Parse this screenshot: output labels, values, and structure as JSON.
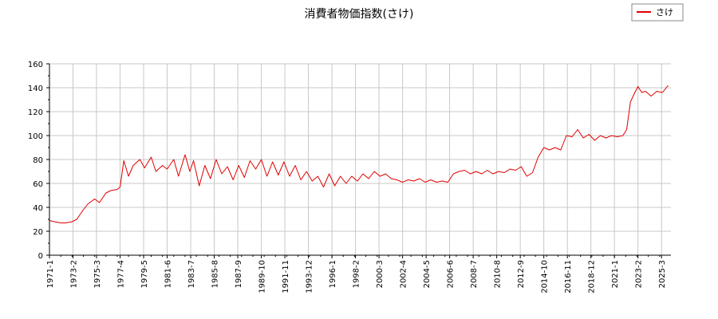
{
  "chart_data": {
    "type": "line",
    "title": "消費者物価指数(さけ)",
    "xlabel": "",
    "ylabel": "",
    "ylim": [
      0,
      160
    ],
    "yticks": [
      0,
      20,
      40,
      60,
      80,
      100,
      120,
      140,
      160
    ],
    "grid": true,
    "legend_position": "top-right",
    "colors": {
      "series": "#e00000",
      "grid": "#c8c8c8",
      "axis": "#000000",
      "background": "#ffffff"
    },
    "x_tick_labels": [
      "1971-1",
      "1973-2",
      "1975-3",
      "1977-4",
      "1979-5",
      "1981-6",
      "1983-7",
      "1985-8",
      "1987-9",
      "1989-10",
      "1991-11",
      "1993-12",
      "1996-1",
      "1998-2",
      "2000-3",
      "2002-4",
      "2004-5",
      "2006-6",
      "2008-7",
      "2010-8",
      "2012-9",
      "2014-10",
      "2016-11",
      "2018-12",
      "2021-1",
      "2023-2",
      "2025-3"
    ],
    "x_range": [
      "1971-01",
      "2026-01"
    ],
    "series": [
      {
        "name": "さけ",
        "x": [
          "1971-01",
          "1971-06",
          "1972-01",
          "1972-06",
          "1973-01",
          "1973-06",
          "1974-01",
          "1974-06",
          "1975-01",
          "1975-06",
          "1976-01",
          "1976-06",
          "1977-01",
          "1977-04",
          "1977-08",
          "1978-01",
          "1978-06",
          "1979-01",
          "1979-06",
          "1980-01",
          "1980-06",
          "1981-01",
          "1981-06",
          "1982-01",
          "1982-06",
          "1983-01",
          "1983-06",
          "1983-10",
          "1984-04",
          "1984-10",
          "1985-04",
          "1985-10",
          "1986-04",
          "1986-10",
          "1987-04",
          "1987-10",
          "1988-04",
          "1988-10",
          "1989-04",
          "1989-10",
          "1990-04",
          "1990-10",
          "1991-04",
          "1991-10",
          "1992-04",
          "1992-10",
          "1993-04",
          "1993-10",
          "1994-04",
          "1994-10",
          "1995-04",
          "1995-10",
          "1996-04",
          "1996-10",
          "1997-04",
          "1997-10",
          "1998-04",
          "1998-10",
          "1999-04",
          "1999-10",
          "2000-04",
          "2000-10",
          "2001-04",
          "2001-10",
          "2002-04",
          "2002-10",
          "2003-04",
          "2003-10",
          "2004-04",
          "2004-10",
          "2005-04",
          "2005-10",
          "2006-04",
          "2006-10",
          "2007-04",
          "2007-10",
          "2008-04",
          "2008-10",
          "2009-04",
          "2009-10",
          "2010-04",
          "2010-10",
          "2011-04",
          "2011-10",
          "2012-04",
          "2012-10",
          "2013-04",
          "2013-10",
          "2014-04",
          "2014-10",
          "2015-04",
          "2015-10",
          "2016-04",
          "2016-10",
          "2017-04",
          "2017-10",
          "2018-04",
          "2018-10",
          "2019-04",
          "2019-10",
          "2020-04",
          "2020-10",
          "2021-04",
          "2021-10",
          "2022-02",
          "2022-06",
          "2022-10",
          "2023-02",
          "2023-06",
          "2023-10",
          "2024-04",
          "2024-10",
          "2025-04",
          "2025-10"
        ],
        "values": [
          29,
          28,
          27,
          27,
          28,
          30,
          38,
          43,
          47,
          44,
          52,
          54,
          55,
          57,
          79,
          66,
          75,
          80,
          73,
          82,
          70,
          75,
          72,
          80,
          66,
          84,
          70,
          79,
          58,
          75,
          64,
          80,
          68,
          74,
          63,
          75,
          65,
          79,
          72,
          80,
          66,
          78,
          67,
          78,
          66,
          75,
          63,
          70,
          62,
          66,
          57,
          68,
          58,
          66,
          60,
          66,
          62,
          68,
          64,
          70,
          66,
          68,
          64,
          63,
          61,
          63,
          62,
          64,
          61,
          63,
          61,
          62,
          61,
          68,
          70,
          71,
          68,
          70,
          68,
          71,
          68,
          70,
          69,
          72,
          71,
          74,
          66,
          69,
          82,
          90,
          88,
          90,
          88,
          100,
          99,
          105,
          98,
          101,
          96,
          100,
          98,
          100,
          99,
          100,
          105,
          128,
          135,
          141,
          136,
          137,
          133,
          137,
          136,
          142
        ]
      }
    ]
  }
}
